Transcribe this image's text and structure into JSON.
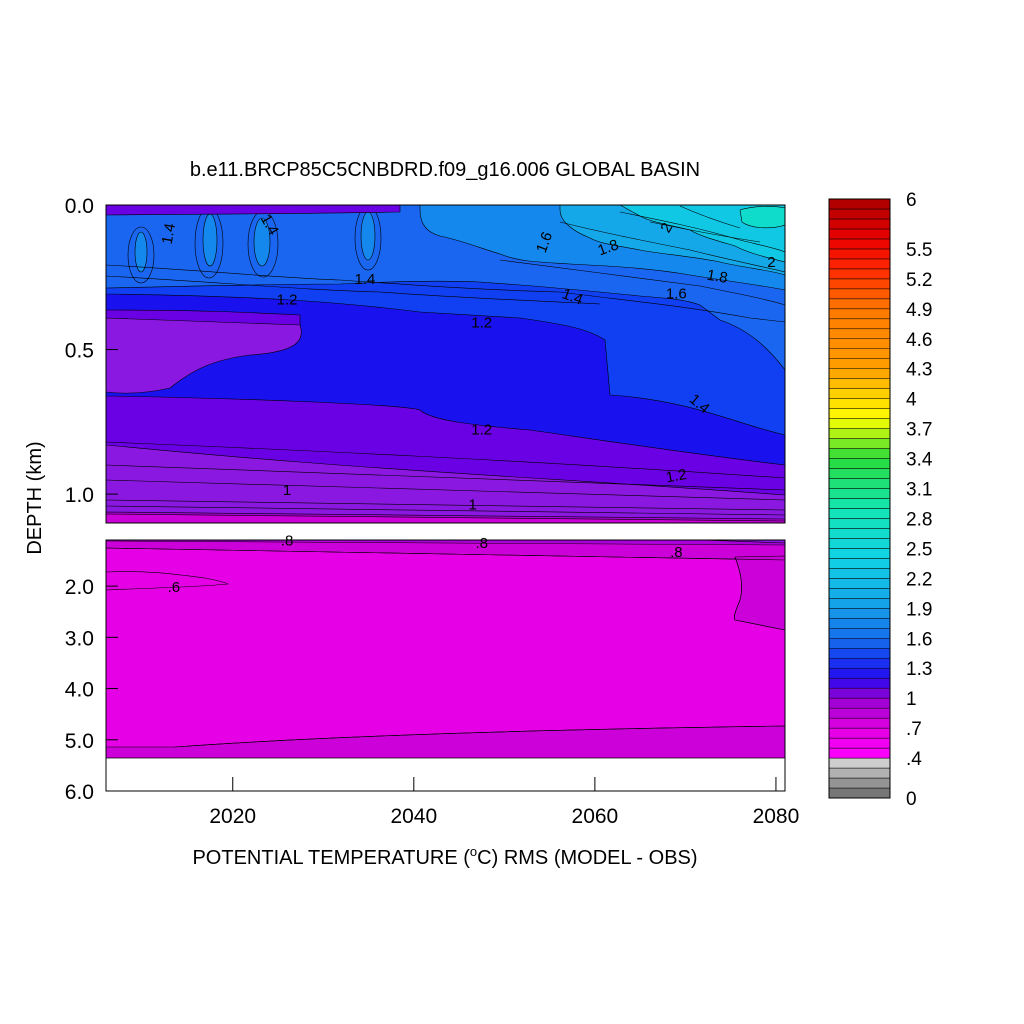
{
  "chart_data": {
    "type": "heatmap",
    "title": "b.e11.BRCP85C5CNBDRD.f09_g16.006 GLOBAL BASIN",
    "xlabel_parts": [
      "POTENTIAL TEMPERATURE (",
      "o",
      "C) RMS (MODEL - OBS)"
    ],
    "ylabel": "DEPTH (km)",
    "xlim": [
      2006,
      2081
    ],
    "x_ticks": [
      2020,
      2040,
      2060,
      2080
    ],
    "x_tick_labels": [
      "2020",
      "2040",
      "2060",
      "2080"
    ],
    "upper_panel": {
      "depth_range_km": [
        0.0,
        1.1
      ],
      "y_ticks": [
        0.0,
        0.5,
        1.0
      ],
      "y_tick_labels": [
        "0.0",
        "0.5",
        "1.0"
      ]
    },
    "lower_panel": {
      "depth_range_km": [
        1.1,
        6.0
      ],
      "y_ticks": [
        2.0,
        3.0,
        4.0,
        5.0,
        6.0
      ],
      "y_tick_labels": [
        "2.0",
        "3.0",
        "4.0",
        "5.0",
        "6.0"
      ],
      "no_data_below_km": 5.35
    },
    "contour_labels": [
      {
        "text": "1.4",
        "year": 2013,
        "depth": 0.1,
        "angle": -80
      },
      {
        "text": "1.4",
        "year": 2024,
        "depth": 0.07,
        "angle": 60
      },
      {
        "text": "1.4",
        "year": 2034.6,
        "depth": 0.26,
        "angle": 0
      },
      {
        "text": "1.2",
        "year": 2026,
        "depth": 0.33,
        "angle": 0
      },
      {
        "text": "1.2",
        "year": 2047.5,
        "depth": 0.41,
        "angle": 0
      },
      {
        "text": "1.2",
        "year": 2047.5,
        "depth": 0.78,
        "angle": 0
      },
      {
        "text": "1.2",
        "year": 2069,
        "depth": 0.94,
        "angle": -10
      },
      {
        "text": "1",
        "year": 2026,
        "depth": 0.99,
        "angle": 0
      },
      {
        "text": "1",
        "year": 2046.5,
        "depth": 1.04,
        "angle": 0
      },
      {
        "text": "1.6",
        "year": 2054.5,
        "depth": 0.13,
        "angle": -70
      },
      {
        "text": "1.8",
        "year": 2061.5,
        "depth": 0.15,
        "angle": -20
      },
      {
        "text": "2",
        "year": 2068,
        "depth": 0.08,
        "angle": -60
      },
      {
        "text": "1.8",
        "year": 2073.5,
        "depth": 0.25,
        "angle": 10
      },
      {
        "text": "1.6",
        "year": 2069,
        "depth": 0.31,
        "angle": 0
      },
      {
        "text": "1.4",
        "year": 2057.5,
        "depth": 0.32,
        "angle": 20
      },
      {
        "text": "1.4",
        "year": 2071.5,
        "depth": 0.69,
        "angle": 40
      },
      {
        "text": "2",
        "year": 2079.5,
        "depth": 0.2,
        "angle": 0
      },
      {
        "text": ".8",
        "year": 2026,
        "depth": 1.13,
        "angle": 0
      },
      {
        "text": ".8",
        "year": 2047.5,
        "depth": 1.18,
        "angle": 0
      },
      {
        "text": ".8",
        "year": 2069,
        "depth": 1.35,
        "angle": 0
      },
      {
        "text": ".6",
        "year": 2013.5,
        "depth": 2.04,
        "angle": 0
      }
    ],
    "colorbar": {
      "min": 0,
      "max": 6,
      "step": 0.1,
      "tick_labels": [
        "0",
        ".4",
        ".7",
        "1",
        "1.3",
        "1.6",
        "1.9",
        "2.2",
        "2.5",
        "2.8",
        "3.1",
        "3.4",
        "3.7",
        "4",
        "4.3",
        "4.6",
        "4.9",
        "5.2",
        "5.5",
        "6"
      ],
      "tick_values": [
        0,
        0.4,
        0.7,
        1.0,
        1.3,
        1.6,
        1.9,
        2.2,
        2.5,
        2.8,
        3.1,
        3.4,
        3.7,
        4.0,
        4.3,
        4.6,
        4.9,
        5.2,
        5.5,
        6.0
      ]
    },
    "colors": {
      "c0_6": "#e600e6",
      "c0_8": "#cc00d9",
      "c0_9": "#a800d8",
      "c1_0": "#8a18e0",
      "c1_1": "#6a00e4",
      "c1_2": "#1a12ee",
      "c1_3": "#1040f2",
      "c1_4": "#1a66f0",
      "c1_6": "#1488ec",
      "c1_8": "#14a8e8",
      "c2_0": "#10c8e4",
      "c2_2": "#10dccc"
    }
  }
}
